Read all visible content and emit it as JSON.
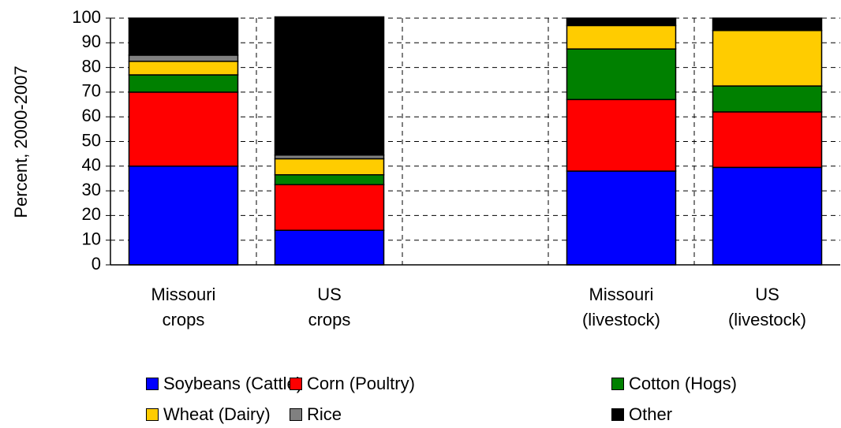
{
  "chart_data": {
    "type": "stacked-bar",
    "y_label": "Percent, 2000-2007",
    "categories": [
      "Missouri\ncrops",
      "US\ncrops",
      null,
      "Missouri\n(livestock)",
      "US\n(livestock)"
    ],
    "series": [
      {
        "name": "Soybeans (Cattle)",
        "color": "#0000ff",
        "values": [
          40,
          14,
          null,
          38,
          39.5
        ]
      },
      {
        "name": "Corn (Poultry)",
        "color": "#ff0000",
        "values": [
          30,
          18.5,
          null,
          29,
          22.5
        ]
      },
      {
        "name": "Cotton (Hogs)",
        "color": "#008000",
        "values": [
          7,
          4,
          null,
          20.5,
          10.5
        ]
      },
      {
        "name": "Wheat (Dairy)",
        "color": "#ffcc00",
        "values": [
          5.5,
          6.5,
          null,
          9.5,
          22.5
        ]
      },
      {
        "name": "Rice",
        "color": "#808080",
        "values": [
          2.5,
          1.5,
          null,
          0,
          0
        ]
      },
      {
        "name": "Other",
        "color": "#000000",
        "values": [
          15,
          56,
          null,
          3,
          5
        ]
      }
    ],
    "ylim": [
      0,
      100
    ],
    "yticks": [
      0,
      10,
      20,
      30,
      40,
      50,
      60,
      70,
      80,
      90,
      100
    ],
    "grid": true
  }
}
